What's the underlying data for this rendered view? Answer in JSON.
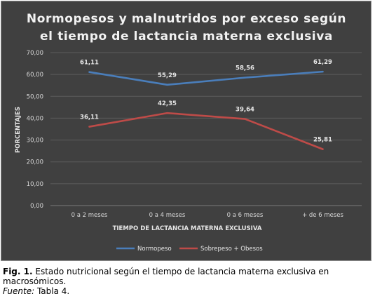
{
  "chart_data": {
    "type": "line",
    "title_lines": [
      "Normopesos y malnutridos por exceso según",
      "el tiempo de lactancia materna exclusiva"
    ],
    "xlabel": "TIEMPO DE LACTANCIA MATERNA EXCLUSIVA",
    "ylabel": "PORCENTAJES",
    "categories": [
      "0 a 2 meses",
      "0 a 4 meses",
      "0 a 6 meses",
      "+ de 6 meses"
    ],
    "ylim": [
      0,
      70
    ],
    "yticks": [
      "0,00",
      "10,00",
      "20,00",
      "30,00",
      "40,00",
      "50,00",
      "60,00",
      "70,00"
    ],
    "grid": true,
    "legend_position": "bottom",
    "series": [
      {
        "name": "Normopeso",
        "values": [
          61.11,
          55.29,
          58.56,
          61.29
        ],
        "labels": [
          "61,11",
          "55,29",
          "58,56",
          "61,29"
        ],
        "color": "#4a7ebb"
      },
      {
        "name": "Sobrepeso + Obesos",
        "values": [
          36.11,
          42.35,
          39.64,
          25.81
        ],
        "labels": [
          "36,11",
          "42,35",
          "39,64",
          "25,81"
        ],
        "color": "#be4b48"
      }
    ]
  },
  "caption": {
    "label": "Fig. 1.",
    "text": " Estado nutricional según el tiempo de lactancia materna exclusiva en macrosómicos.",
    "source_label": "Fuente:",
    "source_text": " Tabla 4."
  }
}
